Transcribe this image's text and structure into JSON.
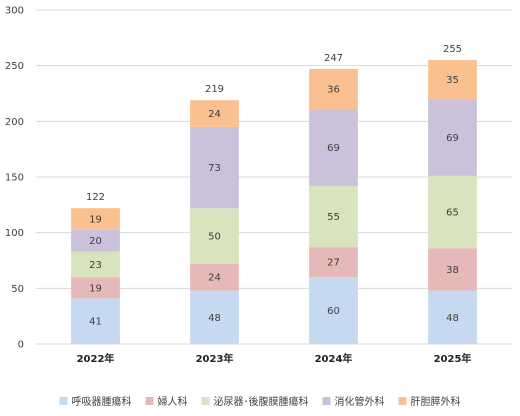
{
  "chart_data": {
    "type": "bar",
    "stacked": true,
    "categories": [
      "2022年",
      "2023年",
      "2024年",
      "2025年"
    ],
    "series": [
      {
        "name": "呼吸器腫瘍科",
        "values": [
          41,
          48,
          60,
          48
        ],
        "color": "#c5d9f1"
      },
      {
        "name": "婦人科",
        "values": [
          19,
          24,
          27,
          38
        ],
        "color": "#e6b9b8"
      },
      {
        "name": "泌尿器･後腹膜腫瘍科",
        "values": [
          23,
          50,
          55,
          65
        ],
        "color": "#d7e4bd"
      },
      {
        "name": "消化管外科",
        "values": [
          20,
          73,
          69,
          69
        ],
        "color": "#ccc1da"
      },
      {
        "name": "肝胆膵外科",
        "values": [
          19,
          24,
          36,
          35
        ],
        "color": "#fac090"
      }
    ],
    "totals": [
      122,
      219,
      247,
      255
    ],
    "yticks": [
      0,
      50,
      100,
      150,
      200,
      250,
      300
    ],
    "ylim": [
      0,
      300
    ],
    "grid": true,
    "legend": "bottom",
    "title": "",
    "xlabel": "",
    "ylabel": ""
  }
}
